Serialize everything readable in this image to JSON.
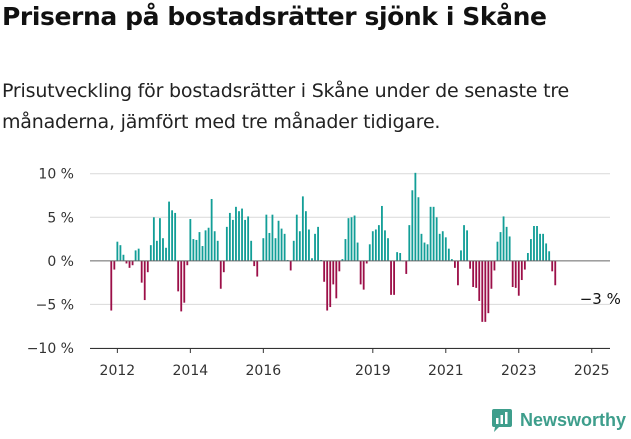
{
  "title": "Priserna på bostadsrätter sjönk i Skåne",
  "subtitle": "Prisutveckling för bostadsrätter i Skåne under de senaste tre månaderna, jämfört med tre månader tidigare.",
  "brand": {
    "name": "Newsworthy",
    "icon": "bar-chart-logo-icon"
  },
  "colors": {
    "positive": "#129e97",
    "negative": "#9c0f48",
    "grid": "#d9d9d9",
    "zero": "#666666",
    "text": "#333333",
    "brand": "#3e9e8c"
  },
  "chart_data": {
    "type": "bar",
    "title": "",
    "xlabel": "",
    "ylabel": "",
    "ylim": [
      -10,
      11
    ],
    "yticks": [
      -10,
      -5,
      0,
      5,
      10
    ],
    "ytick_labels": [
      "−10 %",
      "−5 %",
      "0 %",
      "5 %",
      "10 %"
    ],
    "xrange": [
      2011.25,
      2025.5
    ],
    "xticks": [
      2012,
      2014,
      2016,
      2019,
      2021,
      2023,
      2025
    ],
    "xtick_labels": [
      "2012",
      "2014",
      "2016",
      "2019",
      "2021",
      "2023",
      "2025"
    ],
    "grid": true,
    "legend": "none",
    "series": [
      {
        "start": "2011-11",
        "frequency": "monthly",
        "values": [
          -5.7,
          -1,
          2.2,
          1.8,
          0.7,
          -0.3,
          -0.8,
          -0.5,
          1.2,
          1.4,
          -2.5,
          -4.5,
          -1.3,
          1.8,
          5,
          2.3,
          4.9,
          2.6,
          1.5,
          6.8,
          5.8,
          5.5,
          -3.5,
          -5.8,
          -4.8,
          -0.5,
          4.8,
          2.5,
          2.4,
          3.3,
          1.7,
          3.5,
          3.8,
          7.1,
          3.4,
          2.3,
          -3.2,
          -1.3,
          3.9,
          5.5,
          4.7,
          6.2,
          5.7,
          6,
          4.7,
          5.1,
          2.3,
          -0.6,
          -1.8,
          0,
          2.6,
          5.3,
          3.2,
          5.3,
          2.6,
          4.6,
          3.7,
          3.1,
          0.1,
          -1.1,
          2.3,
          5.3,
          3.4,
          7.4,
          5.7,
          3.6,
          0.3,
          3.1,
          3.9,
          0.1,
          -2.4,
          -5.7,
          -5.3,
          -2.7,
          -4.3,
          -1.2,
          0.2,
          2.5,
          4.9,
          5,
          5.2,
          2.1,
          -2.7,
          -3.3,
          -0.3,
          1.9,
          3.4,
          3.6,
          4.1,
          6.3,
          3.5,
          2.6,
          -3.9,
          -3.9,
          1,
          0.9,
          0,
          -1.5,
          4.1,
          8.1,
          10.1,
          7.3,
          3.1,
          2.1,
          1.9,
          6.2,
          6.2,
          5,
          3.1,
          3.4,
          2.7,
          1.4,
          0.2,
          -0.8,
          -2.8,
          1.2,
          4.1,
          3.5,
          -0.9,
          -3,
          -3.1,
          -4.6,
          -7,
          -7,
          -6,
          -3.2,
          -1.1,
          2.2,
          3.3,
          5.1,
          3.9,
          2.8,
          -3,
          -3.1,
          -4,
          -2.2,
          -1,
          0.9,
          2.5,
          4,
          4,
          3.1,
          3.1,
          2,
          1.1,
          -1.2,
          -2.8
        ]
      }
    ],
    "annotations": [
      {
        "text": "−3 %",
        "x": 2025.25,
        "y": -3
      }
    ]
  }
}
